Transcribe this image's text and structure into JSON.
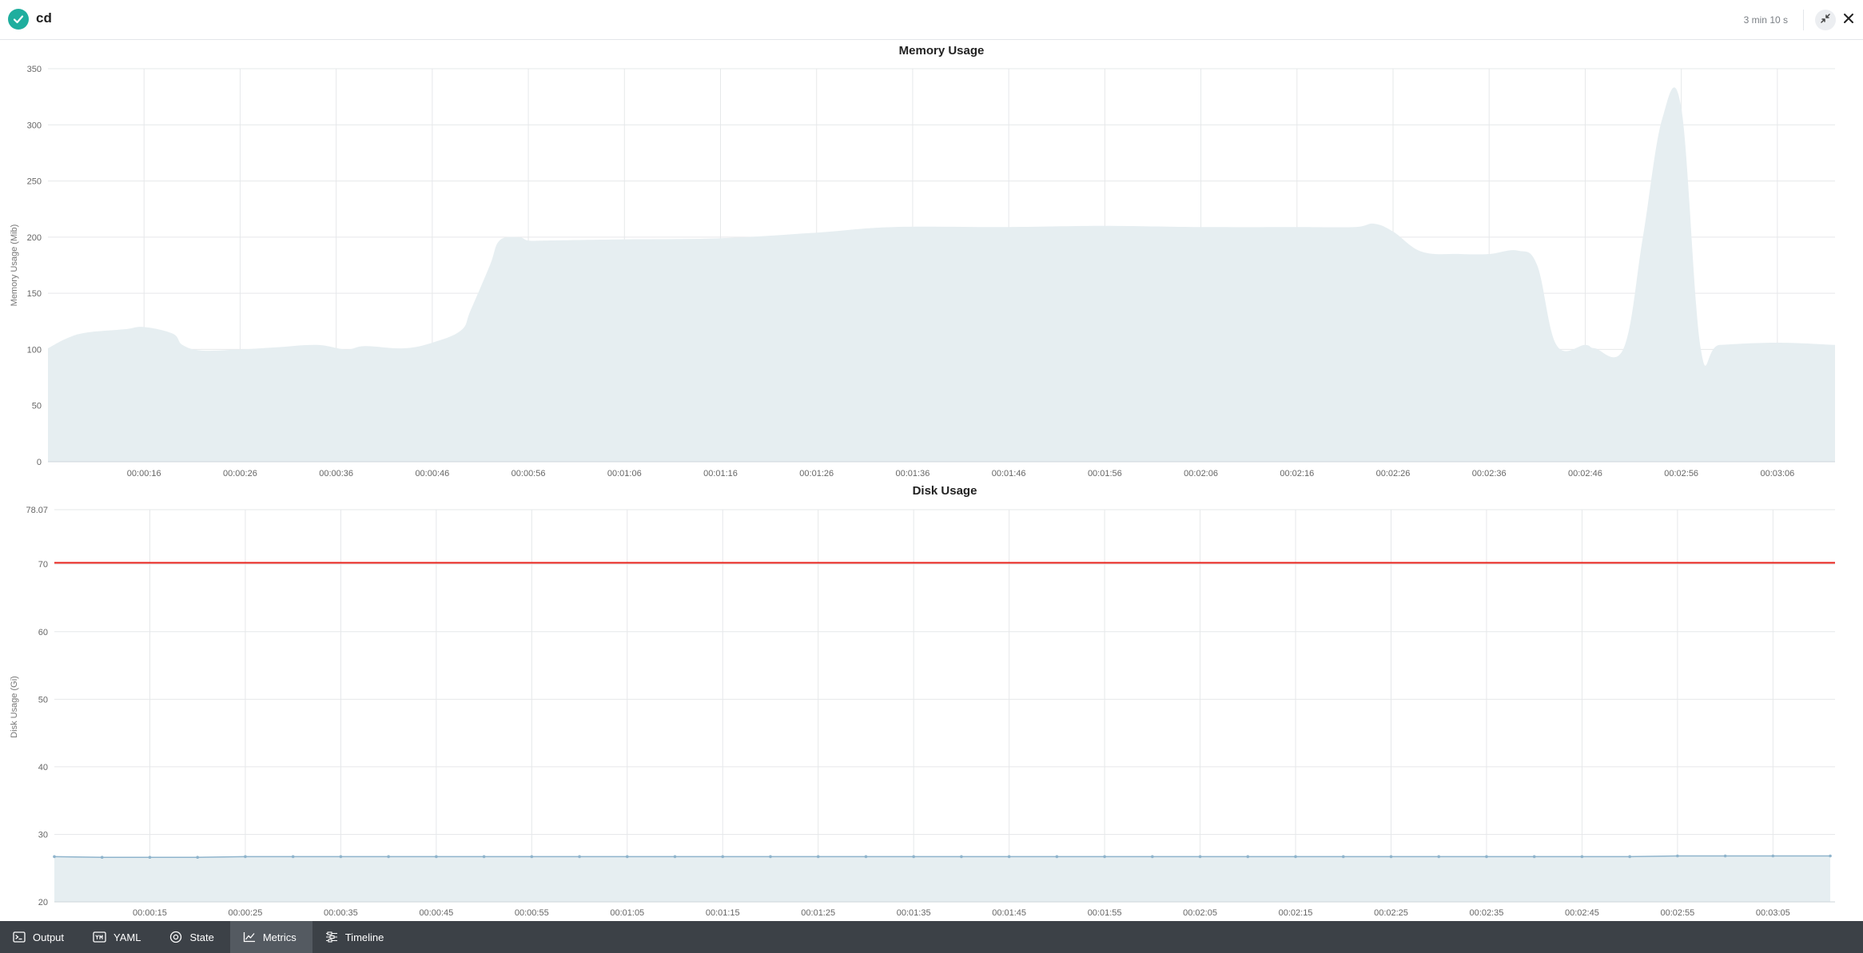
{
  "header": {
    "title": "cd",
    "duration": "3 min 10 s",
    "status": "success",
    "icons": {
      "status": "check-circle-icon",
      "collapse": "collapse-arrows-icon",
      "close": "close-icon"
    }
  },
  "bottom_tabs": [
    {
      "label": "Output",
      "icon": "terminal-icon",
      "active": false
    },
    {
      "label": "YAML",
      "icon": "yaml-icon",
      "active": false
    },
    {
      "label": "State",
      "icon": "target-icon",
      "active": false
    },
    {
      "label": "Metrics",
      "icon": "chart-line-icon",
      "active": true
    },
    {
      "label": "Timeline",
      "icon": "timeline-icon",
      "active": false
    }
  ],
  "colors": {
    "accent": "#1fae9e",
    "area_fill": "#e6eef1",
    "disk_line": "#8fb4cc",
    "threshold": "#e8231c",
    "bottombar": "#3c4147"
  },
  "chart_data": [
    {
      "type": "area",
      "title": "Memory Usage",
      "xlabel": "",
      "ylabel": "Memory Usage (Mib)",
      "ylim": [
        0,
        350
      ],
      "yticks": [
        0,
        50,
        100,
        150,
        200,
        250,
        300,
        350
      ],
      "grid": true,
      "xrange_seconds": [
        6,
        192
      ],
      "xtick_labels": [
        "00:00:16",
        "00:00:26",
        "00:00:36",
        "00:00:46",
        "00:00:56",
        "00:01:06",
        "00:01:16",
        "00:01:26",
        "00:01:36",
        "00:01:46",
        "00:01:56",
        "00:02:06",
        "00:02:16",
        "00:02:26",
        "00:02:36",
        "00:02:46",
        "00:02:56",
        "00:03:06"
      ],
      "xtick_seconds": [
        16,
        26,
        36,
        46,
        56,
        66,
        76,
        86,
        96,
        106,
        116,
        126,
        136,
        146,
        156,
        166,
        176,
        186,
        196
      ],
      "series": [
        {
          "x": [
            "00:00:06",
            "00:00:08",
            "00:00:10",
            "00:00:14",
            "00:00:16",
            "00:00:19",
            "00:00:20",
            "00:00:22",
            "00:00:26",
            "00:00:30",
            "00:00:34",
            "00:00:37",
            "00:00:39",
            "00:00:43",
            "00:00:46",
            "00:00:49",
            "00:00:50",
            "00:00:52",
            "00:00:53",
            "00:00:55",
            "00:00:56",
            "00:00:58",
            "00:01:06",
            "00:01:16",
            "00:01:26",
            "00:01:34",
            "00:01:46",
            "00:01:56",
            "00:02:06",
            "00:02:16",
            "00:02:22",
            "00:02:24",
            "00:02:26",
            "00:02:29",
            "00:02:33",
            "00:02:36",
            "00:02:39",
            "00:02:41",
            "00:02:43",
            "00:02:46",
            "00:02:47",
            "00:02:50",
            "00:02:52",
            "00:02:54",
            "00:02:56",
            "00:02:58",
            "00:03:00",
            "00:03:06",
            "00:03:12"
          ],
          "values": [
            101,
            110,
            115,
            118,
            120,
            114,
            104,
            99,
            100,
            102,
            104,
            100,
            103,
            101,
            106,
            117,
            135,
            175,
            197,
            200,
            197,
            197,
            198,
            199,
            204,
            209,
            209,
            210,
            209,
            209,
            209,
            212,
            205,
            187,
            185,
            185,
            188,
            175,
            104,
            104,
            101,
            101,
            200,
            305,
            315,
            102,
            104,
            106,
            104
          ]
        }
      ]
    },
    {
      "type": "line",
      "title": "Disk Usage",
      "xlabel": "",
      "ylabel": "Disk Usage (Gi)",
      "ylim": [
        20,
        78.07
      ],
      "yticks": [
        20,
        30,
        40,
        50,
        60,
        70,
        78.07
      ],
      "grid": true,
      "xrange_seconds": [
        5,
        191.5
      ],
      "xtick_labels": [
        "00:00:15",
        "00:00:25",
        "00:00:35",
        "00:00:45",
        "00:00:55",
        "00:01:05",
        "00:01:15",
        "00:01:25",
        "00:01:35",
        "00:01:45",
        "00:01:55",
        "00:02:05",
        "00:02:15",
        "00:02:25",
        "00:02:35",
        "00:02:45",
        "00:02:55",
        "00:03:05"
      ],
      "xtick_seconds": [
        15,
        25,
        35,
        45,
        55,
        65,
        75,
        85,
        95,
        105,
        115,
        125,
        135,
        145,
        155,
        165,
        175,
        185,
        195
      ],
      "series": [
        {
          "x": [
            "00:00:05",
            "00:00:10",
            "00:00:15",
            "00:00:20",
            "00:00:25",
            "00:00:30",
            "00:00:35",
            "00:00:40",
            "00:00:45",
            "00:00:50",
            "00:00:55",
            "00:01:00",
            "00:01:05",
            "00:01:10",
            "00:01:15",
            "00:01:20",
            "00:01:25",
            "00:01:30",
            "00:01:35",
            "00:01:40",
            "00:01:45",
            "00:01:50",
            "00:01:55",
            "00:02:00",
            "00:02:05",
            "00:02:10",
            "00:02:15",
            "00:02:20",
            "00:02:25",
            "00:02:30",
            "00:02:35",
            "00:02:40",
            "00:02:45",
            "00:02:50",
            "00:02:55",
            "00:03:00",
            "00:03:05",
            "00:03:11"
          ],
          "values": [
            26.7,
            26.6,
            26.6,
            26.6,
            26.7,
            26.7,
            26.7,
            26.7,
            26.7,
            26.7,
            26.7,
            26.7,
            26.7,
            26.7,
            26.7,
            26.7,
            26.7,
            26.7,
            26.7,
            26.7,
            26.7,
            26.7,
            26.7,
            26.7,
            26.7,
            26.7,
            26.7,
            26.7,
            26.7,
            26.7,
            26.7,
            26.7,
            26.7,
            26.7,
            26.8,
            26.8,
            26.8,
            26.8
          ]
        }
      ],
      "threshold": 70.2
    }
  ]
}
